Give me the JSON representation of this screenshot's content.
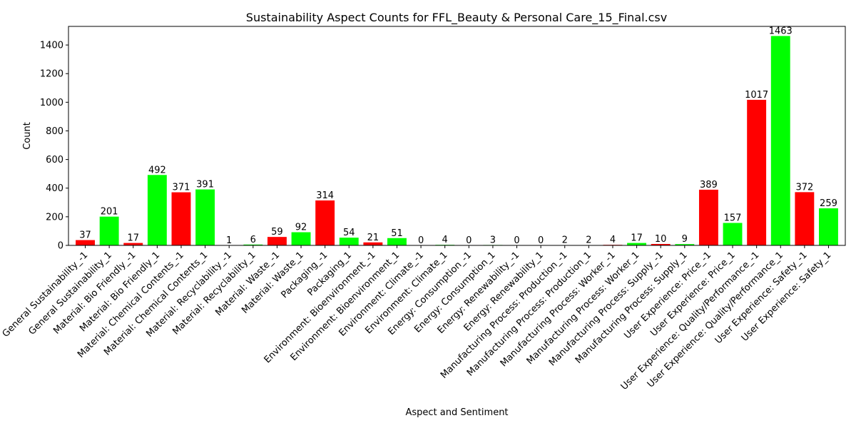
{
  "chart_data": {
    "type": "bar",
    "title": "Sustainability Aspect Counts for FFL_Beauty & Personal Care_15_Final.csv",
    "xlabel": "Aspect and Sentiment",
    "ylabel": "Count",
    "ylim": [
      0,
      1530
    ],
    "yticks": [
      0,
      200,
      400,
      600,
      800,
      1000,
      1200,
      1400
    ],
    "grid": false,
    "colors": {
      "negative": "#ff0000",
      "positive": "#00ff00"
    },
    "categories": [
      "General Sustainability_-1",
      "General Sustainability_1",
      "Material: Bio Friendly_-1",
      "Material: Bio Friendly_1",
      "Material: Chemical Contents_-1",
      "Material: Chemical Contents_1",
      "Material: Recyclability_-1",
      "Material: Recyclability_1",
      "Material: Waste_-1",
      "Material: Waste_1",
      "Packaging_-1",
      "Packaging_1",
      "Environment: Bioenvironment_-1",
      "Environment: Bioenvironment_1",
      "Environment: Climate_-1",
      "Environment: Climate_1",
      "Energy: Consumption_-1",
      "Energy: Consumption_1",
      "Energy: Renewability_-1",
      "Energy: Renewability_1",
      "Manufacturing Process: Production_-1",
      "Manufacturing Process: Production_1",
      "Manufacturing Process: Worker_-1",
      "Manufacturing Process: Worker_1",
      "Manufacturing Process: Supply_-1",
      "Manufacturing Process: Supply_1",
      "User Experience: Price_-1",
      "User Experience: Price_1",
      "User Experience: Quality/Performance_-1",
      "User Experience: Quality/Performance_1",
      "User Experience: Safety_-1",
      "User Experience: Safety_1"
    ],
    "values": [
      37,
      201,
      17,
      492,
      371,
      391,
      1,
      6,
      59,
      92,
      314,
      54,
      21,
      51,
      0,
      4,
      0,
      3,
      0,
      0,
      2,
      2,
      4,
      17,
      10,
      9,
      389,
      157,
      1017,
      1463,
      372,
      259
    ],
    "bar_colors": [
      "negative",
      "positive",
      "negative",
      "positive",
      "negative",
      "positive",
      "negative",
      "positive",
      "negative",
      "positive",
      "negative",
      "positive",
      "negative",
      "positive",
      "negative",
      "positive",
      "negative",
      "positive",
      "negative",
      "positive",
      "negative",
      "positive",
      "negative",
      "positive",
      "negative",
      "positive",
      "negative",
      "positive",
      "negative",
      "positive",
      "negative",
      "positive"
    ]
  }
}
